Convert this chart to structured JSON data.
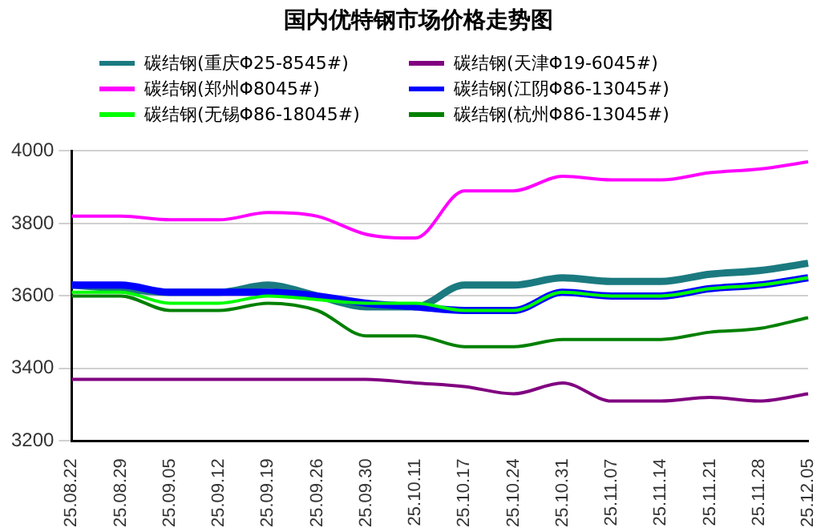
{
  "chart_data": {
    "type": "line",
    "title": "国内优特钢市场价格走势图",
    "categories": [
      "25.08.22",
      "25.08.29",
      "25.09.05",
      "25.09.12",
      "25.09.19",
      "25.09.26",
      "25.09.30",
      "25.10.11",
      "25.10.17",
      "25.10.24",
      "25.10.31",
      "25.11.07",
      "25.11.14",
      "25.11.21",
      "25.11.28",
      "25.12.05"
    ],
    "series": [
      {
        "name": "碳结钢(重庆Φ25-8545#)",
        "color": "#1a7a80",
        "values": [
          3630,
          3620,
          3610,
          3610,
          3630,
          3600,
          3570,
          3570,
          3630,
          3630,
          3650,
          3640,
          3640,
          3660,
          3670,
          3690
        ]
      },
      {
        "name": "碳结钢(天津Φ19-6045#)",
        "color": "#800080",
        "values": [
          3370,
          3370,
          3370,
          3370,
          3370,
          3370,
          3370,
          3360,
          3350,
          3330,
          3360,
          3310,
          3310,
          3320,
          3310,
          3330
        ]
      },
      {
        "name": "碳结钢(郑州Φ8045#)",
        "color": "#ff00ff",
        "values": [
          3820,
          3820,
          3810,
          3810,
          3830,
          3820,
          3770,
          3760,
          3890,
          3890,
          3930,
          3920,
          3920,
          3940,
          3950,
          3970
        ]
      },
      {
        "name": "碳结钢(江阴Φ86-13045#)",
        "color": "#0000ff",
        "values": [
          3630,
          3630,
          3610,
          3610,
          3610,
          3600,
          3580,
          3570,
          3560,
          3560,
          3610,
          3600,
          3600,
          3620,
          3630,
          3650
        ]
      },
      {
        "name": "碳结钢(无锡Φ86-18045#)",
        "color": "#00ff00",
        "values": [
          3610,
          3610,
          3580,
          3580,
          3600,
          3590,
          3580,
          3580,
          3560,
          3560,
          3610,
          3600,
          3600,
          3620,
          3630,
          3650
        ]
      },
      {
        "name": "碳结钢(杭州Φ86-13045#)",
        "color": "#008000",
        "values": [
          3600,
          3600,
          3560,
          3560,
          3580,
          3560,
          3490,
          3490,
          3460,
          3460,
          3480,
          3480,
          3480,
          3500,
          3510,
          3540
        ]
      }
    ],
    "ylim": [
      3200,
      4000
    ],
    "yticks": [
      3200,
      3400,
      3600,
      3800,
      4000
    ],
    "grid": "y",
    "legend": "top",
    "marker": "none",
    "line_style": "solid"
  }
}
